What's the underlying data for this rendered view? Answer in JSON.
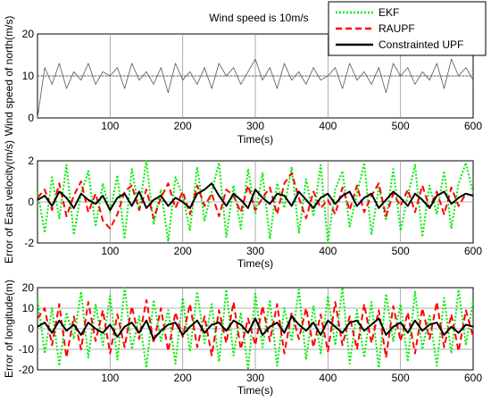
{
  "figure": {
    "title": "Wind speed is 10m/s",
    "legend": [
      {
        "label": "EKF",
        "color": "#00ee00",
        "dash": "dotted"
      },
      {
        "label": "RAUPF",
        "color": "#ff0000",
        "dash": "dashed"
      },
      {
        "label": "Constrainted UPF",
        "color": "#000000",
        "dash": "solid"
      }
    ]
  },
  "chart_data": [
    {
      "type": "line",
      "title": "Wind speed is 10m/s",
      "xlabel": "Time(s)",
      "ylabel": "Wind speed of north(m/s)",
      "xlim": [
        0,
        600
      ],
      "ylim": [
        0,
        20
      ],
      "xticks": [
        100,
        200,
        300,
        400,
        500,
        600
      ],
      "yticks": [
        0,
        10,
        20
      ],
      "grid": true,
      "reference_line": 10,
      "series": [
        {
          "name": "",
          "color": "#555555",
          "x": [
            0,
            10,
            20,
            30,
            40,
            50,
            60,
            70,
            80,
            90,
            100,
            110,
            120,
            130,
            140,
            150,
            160,
            170,
            180,
            190,
            200,
            210,
            220,
            230,
            240,
            250,
            260,
            270,
            280,
            290,
            300,
            310,
            320,
            330,
            340,
            350,
            360,
            370,
            380,
            390,
            400,
            410,
            420,
            430,
            440,
            450,
            460,
            470,
            480,
            490,
            500,
            510,
            520,
            530,
            540,
            550,
            560,
            570,
            580,
            590,
            600
          ],
          "y": [
            0,
            12,
            8,
            13,
            7,
            11,
            9,
            13,
            8,
            11,
            10,
            12,
            7,
            13,
            9,
            11,
            8,
            12,
            6,
            13,
            9,
            11,
            8,
            12,
            7,
            13,
            10,
            12,
            8,
            11,
            14,
            9,
            12,
            7,
            13,
            9,
            11,
            8,
            12,
            9,
            10,
            12,
            7,
            13,
            9,
            11,
            8,
            12,
            6,
            13,
            10,
            12,
            8,
            11,
            9,
            13,
            7,
            14,
            10,
            12,
            9
          ]
        }
      ]
    },
    {
      "type": "line",
      "xlabel": "Time(s)",
      "ylabel": "Error of East velocity(m/s)",
      "xlim": [
        0,
        600
      ],
      "ylim": [
        -2,
        2
      ],
      "xticks": [
        100,
        200,
        300,
        400,
        500,
        600
      ],
      "yticks": [
        -2,
        0,
        2
      ],
      "grid": true,
      "series": [
        {
          "name": "EKF",
          "color": "#00ee00",
          "dash": "dotted",
          "x": [
            0,
            10,
            20,
            30,
            40,
            50,
            60,
            70,
            80,
            90,
            100,
            110,
            120,
            130,
            140,
            150,
            160,
            170,
            180,
            190,
            200,
            210,
            220,
            230,
            240,
            250,
            260,
            270,
            280,
            290,
            300,
            310,
            320,
            330,
            340,
            350,
            360,
            370,
            380,
            390,
            400,
            410,
            420,
            430,
            440,
            450,
            460,
            470,
            480,
            490,
            500,
            510,
            520,
            530,
            540,
            550,
            560,
            570,
            580,
            590,
            600
          ],
          "y": [
            0.5,
            -1.5,
            1.2,
            -0.8,
            1.8,
            -1.6,
            0.4,
            1.5,
            -1.2,
            0.9,
            -0.5,
            1.3,
            -1.8,
            1.6,
            -0.4,
            2,
            -1.1,
            0.6,
            -1.9,
            1.2,
            0.3,
            -1.4,
            1.7,
            -0.9,
            0.5,
            1.9,
            -1.7,
            0.8,
            -1.3,
            1.6,
            -0.6,
            1.4,
            -1.8,
            0.9,
            -0.3,
            1.7,
            -1.5,
            1.1,
            -0.7,
            1.8,
            -2,
            0.6,
            1.5,
            -1.2,
            0.4,
            1.9,
            -1.6,
            0.7,
            -0.9,
            1.6,
            -1.4,
            0.3,
            1.8,
            -1.7,
            0.8,
            -0.6,
            1.5,
            -1.3,
            0.9,
            1.9,
            0.4
          ]
        },
        {
          "name": "RAUPF",
          "color": "#ff0000",
          "dash": "dashed",
          "x": [
            0,
            10,
            20,
            30,
            40,
            50,
            60,
            70,
            80,
            90,
            100,
            110,
            120,
            130,
            140,
            150,
            160,
            170,
            180,
            190,
            200,
            210,
            220,
            230,
            240,
            250,
            260,
            270,
            280,
            290,
            300,
            310,
            320,
            330,
            340,
            350,
            360,
            370,
            380,
            390,
            400,
            410,
            420,
            430,
            440,
            450,
            460,
            470,
            480,
            490,
            500,
            510,
            520,
            530,
            540,
            550,
            560,
            570,
            580,
            590,
            600
          ],
          "y": [
            0.2,
            0.6,
            -0.4,
            0.9,
            -0.7,
            0.3,
            1,
            -0.5,
            0.4,
            -0.9,
            -1.3,
            -0.6,
            0.5,
            0.8,
            -0.4,
            0.6,
            -0.8,
            0.2,
            0.9,
            -0.3,
            0.5,
            -0.6,
            0.8,
            -0.2,
            0.4,
            -0.7,
            0.6,
            0.3,
            -0.5,
            0.8,
            -0.4,
            0.2,
            0.7,
            -0.6,
            0.9,
            1.4,
            0.2,
            -0.8,
            0.5,
            -0.3,
            0.1,
            -0.6,
            0.7,
            -0.4,
            0.8,
            -0.5,
            0.3,
            0.9,
            -0.7,
            0.4,
            -0.2,
            0.6,
            -0.5,
            0.8,
            -0.3,
            0.5,
            -0.6,
            0.7,
            -0.2,
            0.4,
            0.3
          ]
        },
        {
          "name": "Constrainted UPF",
          "color": "#000000",
          "dash": "solid",
          "x": [
            0,
            10,
            20,
            30,
            40,
            50,
            60,
            70,
            80,
            90,
            100,
            110,
            120,
            130,
            140,
            150,
            160,
            170,
            180,
            190,
            200,
            210,
            220,
            230,
            240,
            250,
            260,
            270,
            280,
            290,
            300,
            310,
            320,
            330,
            340,
            350,
            360,
            370,
            380,
            390,
            400,
            410,
            420,
            430,
            440,
            450,
            460,
            470,
            480,
            490,
            500,
            510,
            520,
            530,
            540,
            550,
            560,
            570,
            580,
            590,
            600
          ],
          "y": [
            0.1,
            0.3,
            -0.2,
            0.5,
            0.2,
            -0.3,
            0.4,
            0.1,
            -0.1,
            0.3,
            -0.4,
            0.2,
            0.4,
            -0.2,
            0.5,
            -0.3,
            0.1,
            0.3,
            -0.2,
            0.2,
            0,
            -0.3,
            0.4,
            0.6,
            0.9,
            0.3,
            -0.2,
            0.4,
            0.1,
            -0.3,
            0.6,
            0.2,
            -0.1,
            0.4,
            0.3,
            -0.2,
            0.5,
            0.1,
            -0.3,
            0.2,
            0.4,
            -0.1,
            0.3,
            0.5,
            -0.2,
            0.2,
            0.4,
            -0.3,
            0.1,
            0.5,
            0.2,
            -0.2,
            0.4,
            0.1,
            -0.3,
            0.3,
            0.5,
            -0.1,
            0.2,
            0.4,
            0.3
          ]
        }
      ]
    },
    {
      "type": "line",
      "xlabel": "Time(s)",
      "ylabel": "Error of longitude(m)",
      "xlim": [
        0,
        600
      ],
      "ylim": [
        -20,
        20
      ],
      "xticks": [
        100,
        200,
        300,
        400,
        500,
        600
      ],
      "yticks": [
        -20,
        -10,
        0,
        10,
        20
      ],
      "grid": true,
      "series": [
        {
          "name": "EKF",
          "color": "#00ee00",
          "dash": "dotted",
          "x": [
            0,
            10,
            20,
            30,
            40,
            50,
            60,
            70,
            80,
            90,
            100,
            110,
            120,
            130,
            140,
            150,
            160,
            170,
            180,
            190,
            200,
            210,
            220,
            230,
            240,
            250,
            260,
            270,
            280,
            290,
            300,
            310,
            320,
            330,
            340,
            350,
            360,
            370,
            380,
            390,
            400,
            410,
            420,
            430,
            440,
            450,
            460,
            470,
            480,
            490,
            500,
            510,
            520,
            530,
            540,
            550,
            560,
            570,
            580,
            590,
            600
          ],
          "y": [
            15,
            -12,
            10,
            -18,
            8,
            -5,
            18,
            -14,
            12,
            -8,
            16,
            -15,
            20,
            -10,
            6,
            -19,
            14,
            -6,
            9,
            -17,
            15,
            -11,
            18,
            -7,
            12,
            -16,
            19,
            -13,
            8,
            -20,
            17,
            -9,
            14,
            -18,
            10,
            -6,
            19,
            -15,
            11,
            -12,
            16,
            -8,
            20,
            -17,
            9,
            -14,
            13,
            -19,
            17,
            -6,
            12,
            -16,
            18,
            -10,
            7,
            -18,
            15,
            -12,
            19,
            -8,
            14
          ]
        },
        {
          "name": "RAUPF",
          "color": "#ff0000",
          "dash": "dashed",
          "x": [
            0,
            10,
            20,
            30,
            40,
            50,
            60,
            70,
            80,
            90,
            100,
            110,
            120,
            130,
            140,
            150,
            160,
            170,
            180,
            190,
            200,
            210,
            220,
            230,
            240,
            250,
            260,
            270,
            280,
            290,
            300,
            310,
            320,
            330,
            340,
            350,
            360,
            370,
            380,
            390,
            400,
            410,
            420,
            430,
            440,
            450,
            460,
            470,
            480,
            490,
            500,
            510,
            520,
            530,
            540,
            550,
            560,
            570,
            580,
            590,
            600
          ],
          "y": [
            5,
            10,
            -8,
            12,
            -14,
            6,
            -10,
            13,
            -6,
            9,
            -12,
            7,
            -9,
            11,
            -5,
            14,
            -7,
            10,
            -11,
            8,
            -4,
            12,
            -9,
            6,
            -13,
            9,
            -7,
            13,
            -10,
            5,
            -8,
            11,
            -6,
            12,
            -12,
            8,
            -5,
            10,
            -9,
            7,
            -11,
            13,
            -8,
            6,
            -10,
            12,
            -7,
            9,
            -14,
            11,
            -6,
            8,
            -12,
            10,
            -5,
            13,
            -9,
            7,
            -11,
            9,
            -4
          ]
        },
        {
          "name": "Constrainted UPF",
          "color": "#000000",
          "dash": "solid",
          "x": [
            0,
            10,
            20,
            30,
            40,
            50,
            60,
            70,
            80,
            90,
            100,
            110,
            120,
            130,
            140,
            150,
            160,
            170,
            180,
            190,
            200,
            210,
            220,
            230,
            240,
            250,
            260,
            270,
            280,
            290,
            300,
            310,
            320,
            330,
            340,
            350,
            360,
            370,
            380,
            390,
            400,
            410,
            420,
            430,
            440,
            450,
            460,
            470,
            480,
            490,
            500,
            510,
            520,
            530,
            540,
            550,
            560,
            570,
            580,
            590,
            600
          ],
          "y": [
            1,
            3,
            -2,
            4,
            -1,
            2,
            -3,
            3,
            0,
            -2,
            2,
            -4,
            1,
            3,
            -2,
            4,
            -5,
            -1,
            2,
            3,
            -3,
            1,
            4,
            -2,
            2,
            3,
            -1,
            4,
            2,
            -2,
            5,
            -3,
            1,
            3,
            -2,
            6,
            2,
            -1,
            3,
            -3,
            4,
            1,
            -2,
            3,
            4,
            -1,
            2,
            5,
            -3,
            1,
            3,
            -2,
            4,
            -1,
            2,
            3,
            -3,
            1,
            -2,
            2,
            1
          ]
        }
      ]
    }
  ]
}
